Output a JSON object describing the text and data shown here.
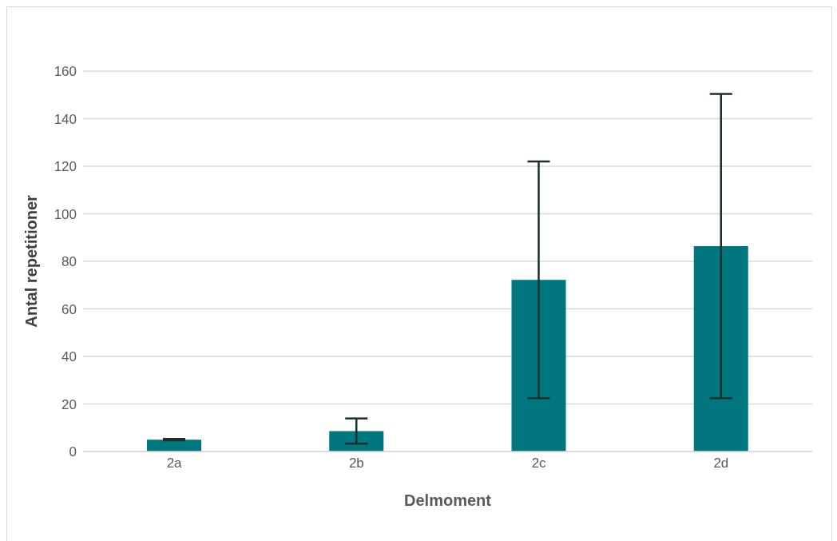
{
  "chart_data": {
    "type": "bar",
    "xlabel": "Delmoment",
    "ylabel": "Antal repetitioner",
    "categories": [
      "2a",
      "2b",
      "2c",
      "2d"
    ],
    "values": [
      5.0,
      8.6,
      72.2,
      86.4
    ],
    "errors": [
      0.3,
      5.3,
      49.8,
      64.0
    ],
    "color": "#00767f",
    "ylim": [
      0,
      160
    ],
    "yticks": [
      0,
      20,
      40,
      60,
      80,
      100,
      120,
      140,
      160
    ],
    "grid": "y"
  }
}
